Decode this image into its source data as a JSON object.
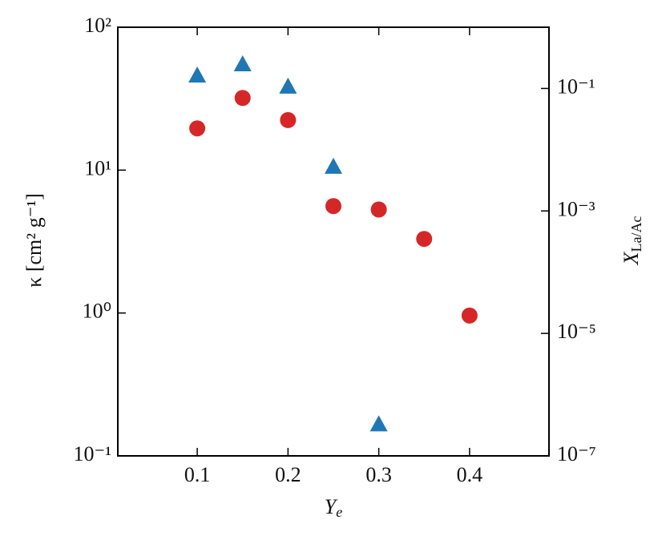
{
  "chart_data": {
    "type": "scatter",
    "xlabel": {
      "symbol": "Y",
      "subscript": "e"
    },
    "ylabel": "κ [cm² g⁻¹]",
    "y2label": {
      "symbol": "X",
      "subscript": "La/Ac"
    },
    "xlim": [
      0.0125,
      0.4875
    ],
    "xticks": [
      0.1,
      0.2,
      0.3,
      0.4
    ],
    "ylog": true,
    "ylim": [
      0.1,
      100
    ],
    "yticks": [
      {
        "value": 0.1,
        "label": "10⁻¹"
      },
      {
        "value": 1,
        "label": "10⁰"
      },
      {
        "value": 10,
        "label": "10¹"
      },
      {
        "value": 100,
        "label": "10²"
      }
    ],
    "y2log": true,
    "y2lim": [
      1e-07,
      1
    ],
    "y2ticks": [
      {
        "value": 1e-07,
        "label": "10⁻⁷"
      },
      {
        "value": 1e-05,
        "label": "10⁻⁵"
      },
      {
        "value": 0.001,
        "label": "10⁻³"
      },
      {
        "value": 0.1,
        "label": "10⁻¹"
      }
    ],
    "label_colors": {
      "y": "#d62728",
      "y2": "#1f77b4"
    },
    "series": [
      {
        "color": "#d62728",
        "marker": "circle",
        "x": [
          0.1,
          0.15,
          0.2,
          0.25,
          0.3,
          0.35,
          0.4
        ],
        "values": [
          19.6,
          32,
          22.4,
          5.6,
          5.3,
          3.3,
          0.96
        ]
      },
      {
        "color": "#1f77b4",
        "marker": "triangle",
        "axis": "y2",
        "x": [
          0.1,
          0.15,
          0.2,
          0.25,
          0.3
        ],
        "values": [
          0.164,
          0.25,
          0.108,
          0.0053,
          3.3e-07
        ]
      }
    ]
  }
}
